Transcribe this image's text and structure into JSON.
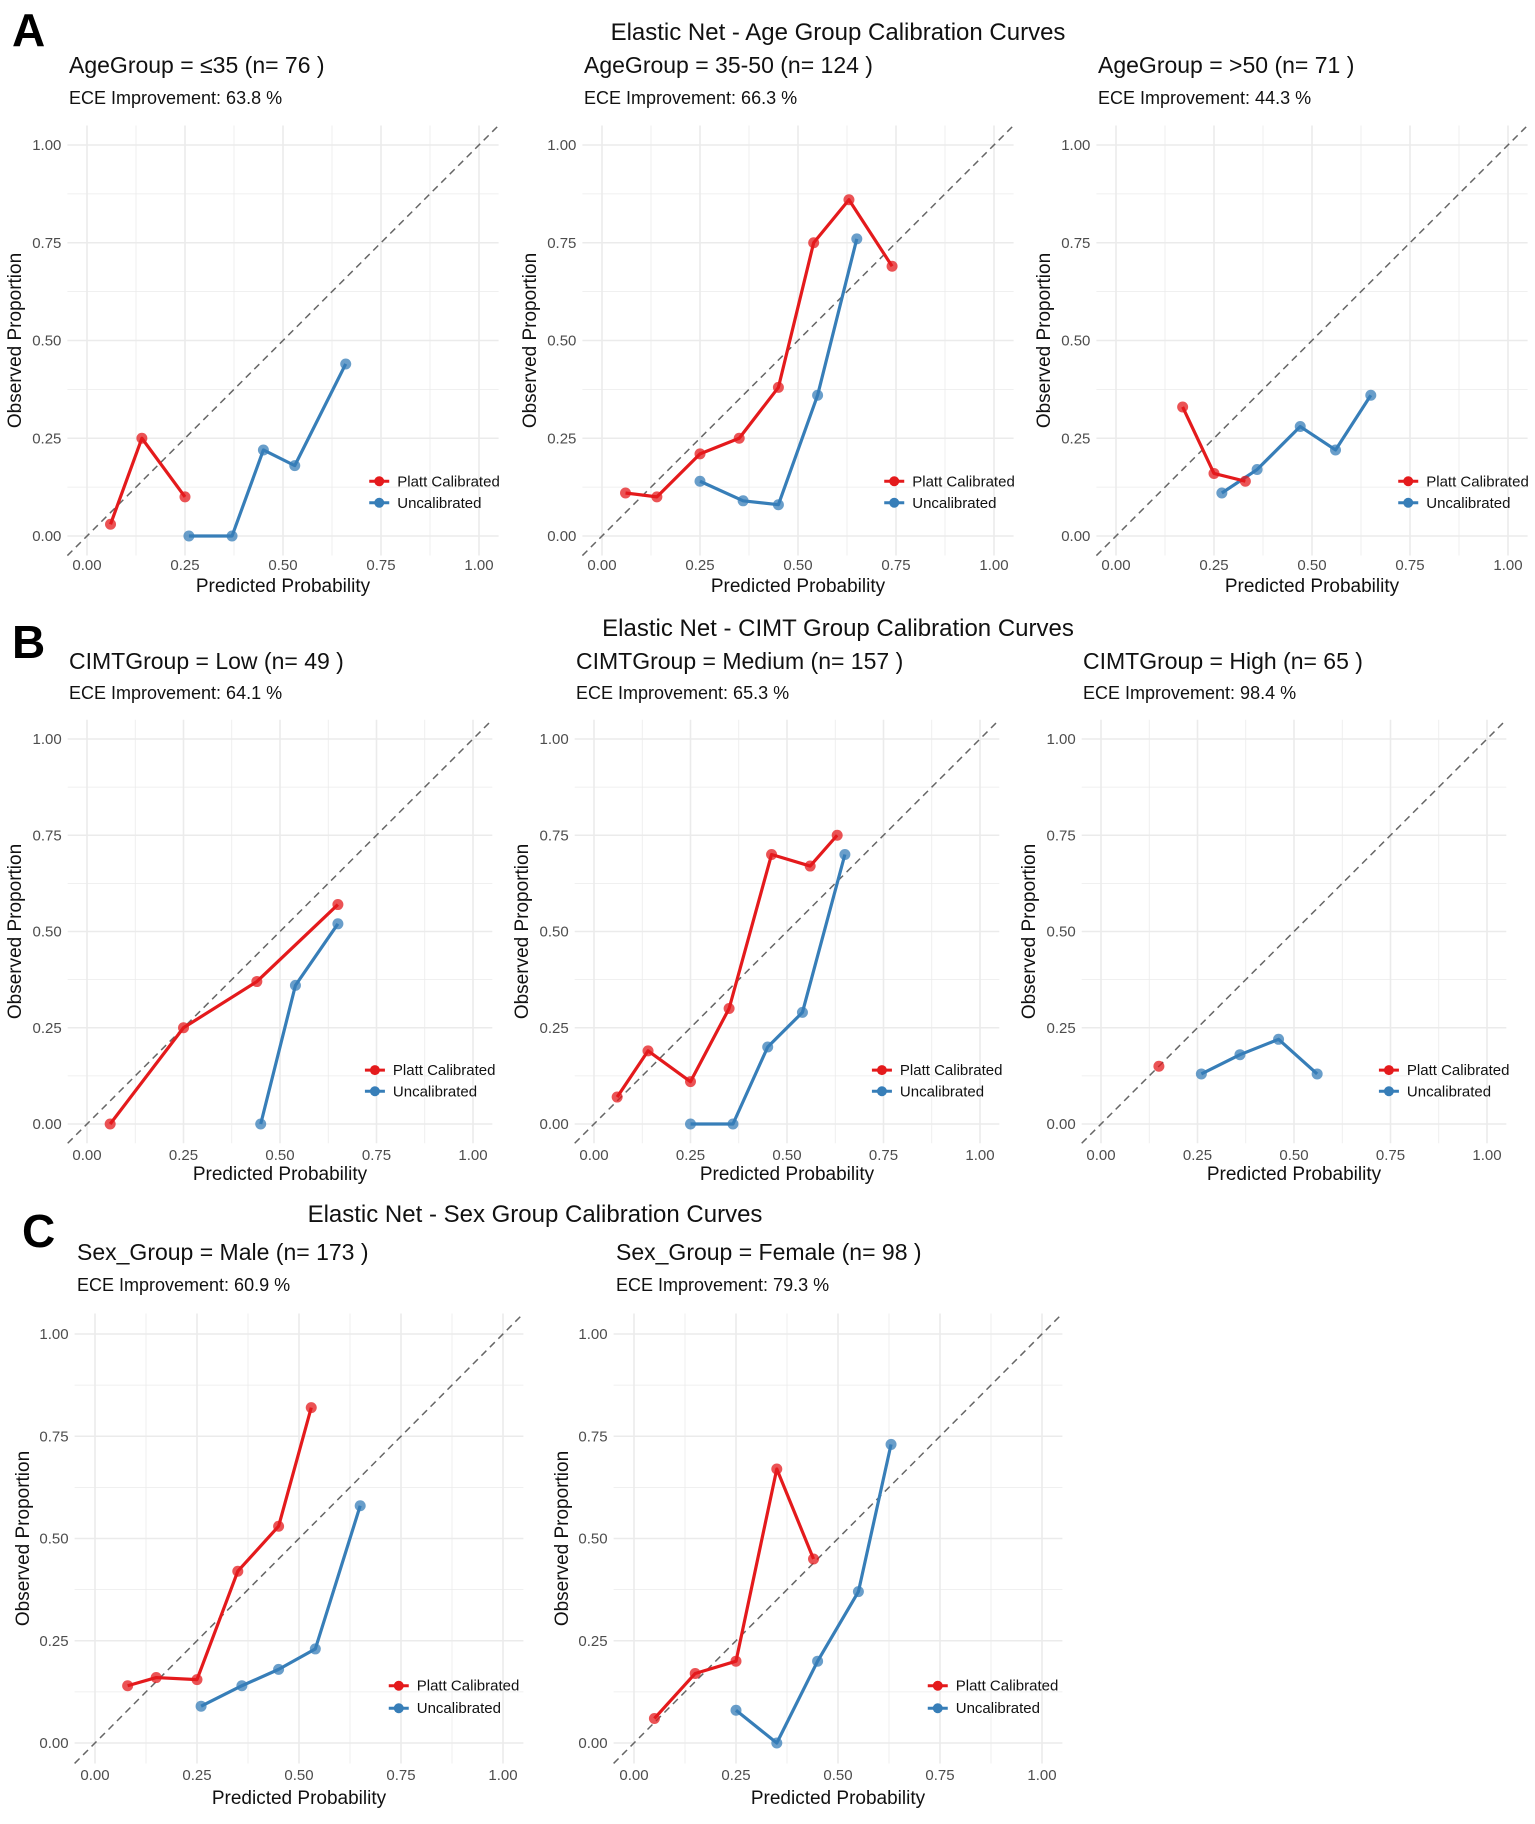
{
  "colors": {
    "platt": "#E41A1C",
    "uncal": "#377EB8",
    "diag": "#666666",
    "grid": "#EBEBEB"
  },
  "chart_data": [
    {
      "type": "line",
      "figure_label": "A",
      "title": "Elastic Net - Age Group Calibration Curves",
      "xlabel": "Predicted Probability",
      "ylabel": "Observed Proportion",
      "xlim": [
        0,
        1
      ],
      "ylim": [
        0,
        1
      ],
      "ticks": [
        "0.00",
        "0.25",
        "0.50",
        "0.75",
        "1.00"
      ],
      "legend": [
        "Platt Calibrated",
        "Uncalibrated"
      ],
      "legend_position": "bottom-right",
      "panels": [
        {
          "subtitle": "AgeGroup = ≤35 (n= 76 )",
          "ece": "ECE Improvement: 63.8 %",
          "platt": [
            [
              0.06,
              0.03
            ],
            [
              0.14,
              0.25
            ],
            [
              0.25,
              0.1
            ]
          ],
          "uncal": [
            [
              0.26,
              0.0
            ],
            [
              0.37,
              0.0
            ],
            [
              0.45,
              0.22
            ],
            [
              0.53,
              0.18
            ],
            [
              0.66,
              0.44
            ]
          ]
        },
        {
          "subtitle": "AgeGroup = 35-50 (n= 124 )",
          "ece": "ECE Improvement: 66.3 %",
          "platt": [
            [
              0.06,
              0.11
            ],
            [
              0.14,
              0.1
            ],
            [
              0.25,
              0.21
            ],
            [
              0.35,
              0.25
            ],
            [
              0.45,
              0.38
            ],
            [
              0.54,
              0.75
            ],
            [
              0.63,
              0.86
            ],
            [
              0.74,
              0.69
            ]
          ],
          "uncal": [
            [
              0.25,
              0.14
            ],
            [
              0.36,
              0.09
            ],
            [
              0.45,
              0.08
            ],
            [
              0.55,
              0.36
            ],
            [
              0.65,
              0.76
            ]
          ]
        },
        {
          "subtitle": "AgeGroup = >50 (n= 71 )",
          "ece": "ECE Improvement: 44.3 %",
          "platt": [
            [
              0.17,
              0.33
            ],
            [
              0.25,
              0.16
            ],
            [
              0.33,
              0.14
            ]
          ],
          "uncal": [
            [
              0.27,
              0.11
            ],
            [
              0.36,
              0.17
            ],
            [
              0.47,
              0.28
            ],
            [
              0.56,
              0.22
            ],
            [
              0.65,
              0.36
            ]
          ]
        }
      ]
    },
    {
      "type": "line",
      "figure_label": "B",
      "title": "Elastic Net - CIMT Group Calibration Curves",
      "xlabel": "Predicted Probability",
      "ylabel": "Observed Proportion",
      "xlim": [
        0,
        1
      ],
      "ylim": [
        0,
        1
      ],
      "ticks": [
        "0.00",
        "0.25",
        "0.50",
        "0.75",
        "1.00"
      ],
      "legend": [
        "Platt Calibrated",
        "Uncalibrated"
      ],
      "legend_position": "bottom-right",
      "panels": [
        {
          "subtitle": "CIMTGroup = Low (n= 49 )",
          "ece": "ECE Improvement: 64.1 %",
          "platt": [
            [
              0.06,
              0.0
            ],
            [
              0.25,
              0.25
            ],
            [
              0.44,
              0.37
            ],
            [
              0.65,
              0.57
            ]
          ],
          "uncal": [
            [
              0.45,
              0.0
            ],
            [
              0.54,
              0.36
            ],
            [
              0.65,
              0.52
            ]
          ]
        },
        {
          "subtitle": "CIMTGroup = Medium (n= 157 )",
          "ece": "ECE Improvement: 65.3 %",
          "platt": [
            [
              0.06,
              0.07
            ],
            [
              0.14,
              0.19
            ],
            [
              0.25,
              0.11
            ],
            [
              0.35,
              0.3
            ],
            [
              0.46,
              0.7
            ],
            [
              0.56,
              0.67
            ],
            [
              0.63,
              0.75
            ]
          ],
          "uncal": [
            [
              0.25,
              0.0
            ],
            [
              0.36,
              0.0
            ],
            [
              0.45,
              0.2
            ],
            [
              0.54,
              0.29
            ],
            [
              0.65,
              0.7
            ]
          ]
        },
        {
          "subtitle": "CIMTGroup = High (n= 65 )",
          "ece": "ECE Improvement: 98.4 %",
          "platt": [
            [
              0.15,
              0.15
            ]
          ],
          "uncal": [
            [
              0.26,
              0.13
            ],
            [
              0.36,
              0.18
            ],
            [
              0.46,
              0.22
            ],
            [
              0.56,
              0.13
            ]
          ]
        }
      ]
    },
    {
      "type": "line",
      "figure_label": "C",
      "title": "Elastic Net - Sex Group Calibration Curves",
      "xlabel": "Predicted Probability",
      "ylabel": "Observed Proportion",
      "xlim": [
        0,
        1
      ],
      "ylim": [
        0,
        1
      ],
      "ticks": [
        "0.00",
        "0.25",
        "0.50",
        "0.75",
        "1.00"
      ],
      "legend": [
        "Platt Calibrated",
        "Uncalibrated"
      ],
      "legend_position": "bottom-right",
      "panels": [
        {
          "subtitle": "Sex_Group = Male (n= 173 )",
          "ece": "ECE Improvement: 60.9 %",
          "platt": [
            [
              0.08,
              0.14
            ],
            [
              0.15,
              0.16
            ],
            [
              0.25,
              0.155
            ],
            [
              0.35,
              0.42
            ],
            [
              0.45,
              0.53
            ],
            [
              0.53,
              0.82
            ]
          ],
          "uncal": [
            [
              0.26,
              0.09
            ],
            [
              0.36,
              0.14
            ],
            [
              0.45,
              0.18
            ],
            [
              0.54,
              0.23
            ],
            [
              0.65,
              0.58
            ]
          ]
        },
        {
          "subtitle": "Sex_Group = Female (n= 98 )",
          "ece": "ECE Improvement: 79.3 %",
          "platt": [
            [
              0.05,
              0.06
            ],
            [
              0.15,
              0.17
            ],
            [
              0.25,
              0.2
            ],
            [
              0.35,
              0.67
            ],
            [
              0.44,
              0.45
            ]
          ],
          "uncal": [
            [
              0.25,
              0.08
            ],
            [
              0.35,
              0.0
            ],
            [
              0.45,
              0.2
            ],
            [
              0.55,
              0.37
            ],
            [
              0.63,
              0.73
            ]
          ]
        }
      ]
    }
  ]
}
